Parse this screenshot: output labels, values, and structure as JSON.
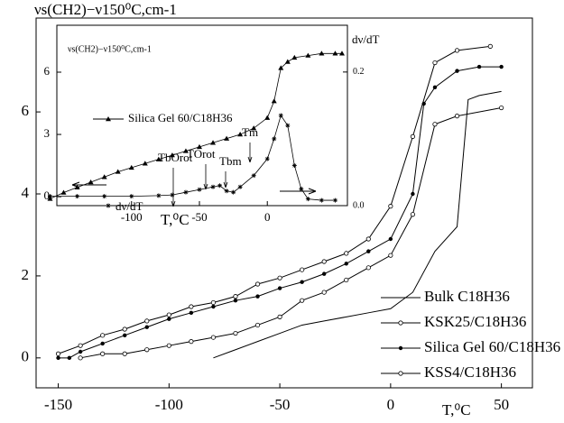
{
  "chart_data": [
    {
      "type": "line",
      "y_label": "νs(CH2)−ν150⁰C,cm-1",
      "x_label": "T,⁰C",
      "xlim": [
        -160,
        64
      ],
      "ylim": [
        -0.73,
        8.29
      ],
      "xticks": [
        -150,
        -100,
        -50,
        0,
        50
      ],
      "yticks": [
        0,
        2,
        4,
        6
      ],
      "series": [
        {
          "name": "Bulk C18H36",
          "color": "#000000",
          "marker": "none",
          "x": [
            -80,
            -70,
            -60,
            -50,
            -40,
            -30,
            -20,
            -10,
            0,
            10,
            20,
            30,
            35,
            40,
            50
          ],
          "values": [
            0,
            0.2,
            0.4,
            0.6,
            0.8,
            0.9,
            1.0,
            1.1,
            1.2,
            1.6,
            2.6,
            3.2,
            6.3,
            6.4,
            6.5
          ]
        },
        {
          "name": "KSK25/C18H36",
          "color": "#000000",
          "marker": "open-circle",
          "x": [
            -150,
            -140,
            -130,
            -120,
            -110,
            -100,
            -90,
            -80,
            -70,
            -60,
            -50,
            -40,
            -30,
            -20,
            -10,
            0,
            10,
            20,
            30,
            45
          ],
          "values": [
            0.1,
            0.3,
            0.55,
            0.7,
            0.9,
            1.05,
            1.25,
            1.35,
            1.5,
            1.8,
            1.95,
            2.15,
            2.35,
            2.55,
            2.9,
            3.7,
            5.4,
            7.2,
            7.5,
            7.6
          ]
        },
        {
          "name": "Silica Gel 60/C18H36",
          "color": "#000000",
          "marker": "dot",
          "x": [
            -150,
            -145,
            -140,
            -130,
            -120,
            -110,
            -100,
            -90,
            -80,
            -70,
            -60,
            -50,
            -40,
            -30,
            -20,
            -10,
            0,
            10,
            15,
            20,
            30,
            40,
            50
          ],
          "values": [
            0,
            0,
            0.15,
            0.35,
            0.55,
            0.75,
            0.95,
            1.1,
            1.25,
            1.4,
            1.5,
            1.7,
            1.85,
            2.05,
            2.3,
            2.6,
            2.9,
            4.0,
            6.2,
            6.6,
            7.0,
            7.1,
            7.1
          ]
        },
        {
          "name": "KSS4/C18H36",
          "color": "#000000",
          "marker": "open-circle",
          "x": [
            -140,
            -130,
            -120,
            -110,
            -100,
            -90,
            -80,
            -70,
            -60,
            -50,
            -40,
            -30,
            -20,
            -10,
            0,
            10,
            20,
            30,
            50
          ],
          "values": [
            0,
            0.1,
            0.1,
            0.2,
            0.3,
            0.4,
            0.5,
            0.6,
            0.8,
            1.0,
            1.4,
            1.6,
            1.9,
            2.2,
            2.5,
            3.5,
            5.7,
            5.9,
            6.1
          ]
        }
      ]
    },
    {
      "type": "line",
      "y_label": "νs(CH2)−ν150⁰C,cm-1",
      "y2_label": "dν/dT",
      "x_label": "T,⁰C",
      "xlim": [
        -155,
        59
      ],
      "ylim": [
        -0.43,
        8.26
      ],
      "y2lim": [
        0,
        0.27
      ],
      "xticks": [
        -100,
        -50,
        0
      ],
      "yticks": [
        0,
        3,
        6
      ],
      "y2ticks": [
        {
          "value": 0,
          "label": "0.0"
        },
        {
          "value": 0.2,
          "label": "0.2"
        }
      ],
      "annotations": [
        "TbOrot",
        "TOrot",
        "Tbm",
        "Tm"
      ],
      "series": [
        {
          "name": "Silica Gel 60/C18H36",
          "color": "#000000",
          "marker": "triangle",
          "x": [
            -160,
            -150,
            -140,
            -130,
            -120,
            -110,
            -100,
            -90,
            -80,
            -70,
            -60,
            -50,
            -40,
            -30,
            -20,
            -10,
            0,
            5,
            10,
            15,
            20,
            30,
            40,
            50,
            55
          ],
          "values": [
            -0.1,
            0.2,
            0.45,
            0.7,
            0.95,
            1.2,
            1.4,
            1.6,
            1.8,
            2.0,
            2.2,
            2.4,
            2.6,
            2.8,
            3.0,
            3.3,
            3.8,
            4.6,
            6.2,
            6.5,
            6.7,
            6.8,
            6.9,
            6.9,
            6.9
          ]
        },
        {
          "name": "dν/dT",
          "color": "#000000",
          "marker": "star",
          "axis": "y2",
          "x": [
            -160,
            -140,
            -120,
            -100,
            -80,
            -70,
            -60,
            -50,
            -40,
            -35,
            -30,
            -25,
            -20,
            -10,
            0,
            5,
            10,
            15,
            20,
            25,
            30,
            40,
            50
          ],
          "values": [
            0.014,
            0.014,
            0.014,
            0.014,
            0.015,
            0.016,
            0.02,
            0.024,
            0.028,
            0.03,
            0.022,
            0.02,
            0.028,
            0.045,
            0.07,
            0.1,
            0.135,
            0.12,
            0.06,
            0.025,
            0.01,
            0.008,
            0.008
          ]
        }
      ]
    }
  ]
}
